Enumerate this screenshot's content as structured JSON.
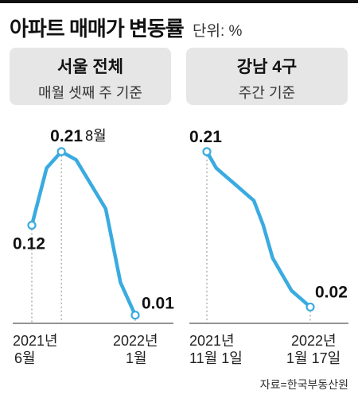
{
  "title": "아파트 매매가 변동률",
  "unit_label": "단위: %",
  "colors": {
    "line": "#3aabe0",
    "axis": "#555555",
    "panel_bg": "#e6e6e6"
  },
  "source": "자료=한국부동산원",
  "chart_data": [
    {
      "type": "line",
      "title": "서울 전체",
      "subtitle": "매월 셋째 주 기준",
      "x": [
        "2021-06",
        "2021-07",
        "2021-08",
        "2021-09",
        "2021-10",
        "2021-11",
        "2021-12",
        "2022-01"
      ],
      "series": [
        {
          "values": [
            0.12,
            0.19,
            0.21,
            0.2,
            0.17,
            0.14,
            0.05,
            0.01
          ]
        }
      ],
      "ylim": [
        0,
        0.24
      ],
      "x_axis_labels": [
        {
          "line1": "2021년",
          "line2": "6월"
        },
        {
          "line1": "2022년",
          "line2": "1월"
        }
      ],
      "annotations": [
        {
          "value": "0.12"
        },
        {
          "value": "0.21",
          "note": "8월"
        },
        {
          "value": "0.01"
        }
      ]
    },
    {
      "type": "line",
      "title": "강남 4구",
      "subtitle": "주간 기준",
      "x": [
        "2021-11-01",
        "2021-11-08",
        "2021-11-15",
        "2021-11-22",
        "2021-11-29",
        "2021-12-06",
        "2021-12-13",
        "2021-12-20",
        "2021-12-27",
        "2022-01-03",
        "2022-01-10",
        "2022-01-17"
      ],
      "series": [
        {
          "values": [
            0.21,
            0.19,
            0.18,
            0.17,
            0.16,
            0.15,
            0.12,
            0.08,
            0.06,
            0.04,
            0.03,
            0.02
          ]
        }
      ],
      "ylim": [
        0,
        0.24
      ],
      "x_axis_labels": [
        {
          "line1": "2021년",
          "line2": "11월 1일"
        },
        {
          "line1": "2022년",
          "line2": "1월 17일"
        }
      ],
      "annotations": [
        {
          "value": "0.21"
        },
        {
          "value": "0.02"
        }
      ]
    }
  ]
}
